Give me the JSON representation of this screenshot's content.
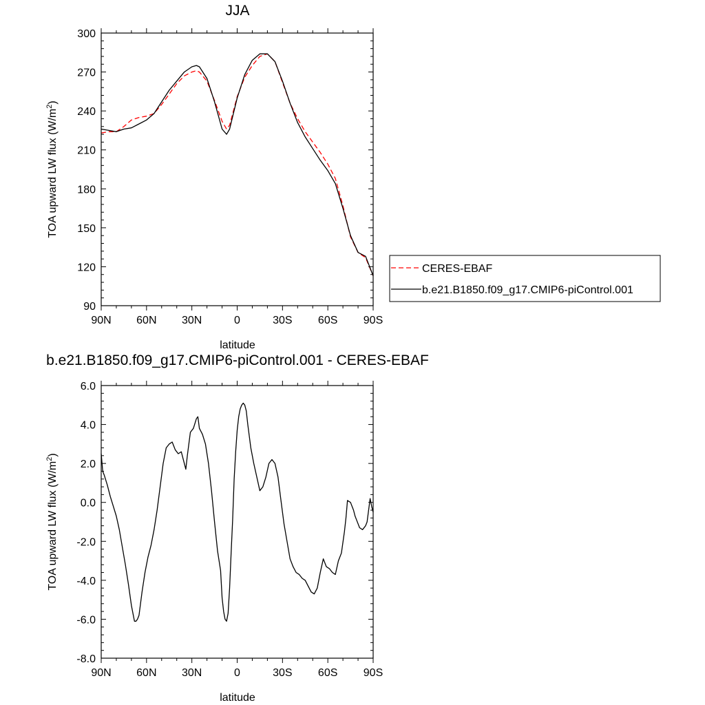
{
  "chart_data": [
    {
      "type": "line",
      "title": "JJA",
      "xlabel": "latitude",
      "ylabel": "TOA upward LW flux (W/m",
      "ylabel_sup": "2",
      "ylabel_tail": ")",
      "xlim": [
        90,
        -90
      ],
      "ylim": [
        90,
        300
      ],
      "x_ticks": [
        {
          "v": 90,
          "label": "90N"
        },
        {
          "v": 60,
          "label": "60N"
        },
        {
          "v": 30,
          "label": "30N"
        },
        {
          "v": 0,
          "label": "0"
        },
        {
          "v": -30,
          "label": "30S"
        },
        {
          "v": -60,
          "label": "60S"
        },
        {
          "v": -90,
          "label": "90S"
        }
      ],
      "y_ticks": [
        {
          "v": 90,
          "label": "90"
        },
        {
          "v": 120,
          "label": "120"
        },
        {
          "v": 150,
          "label": "150"
        },
        {
          "v": 180,
          "label": "180"
        },
        {
          "v": 210,
          "label": "210"
        },
        {
          "v": 240,
          "label": "240"
        },
        {
          "v": 270,
          "label": "270"
        },
        {
          "v": 300,
          "label": "300"
        }
      ],
      "legend": "right",
      "series": [
        {
          "name": "CERES-EBAF",
          "color": "#ff0000",
          "dash": "dashed",
          "x": [
            90,
            85,
            80,
            75,
            70,
            65,
            60,
            55,
            50,
            45,
            40,
            35,
            30,
            27,
            25,
            20,
            15,
            10,
            7,
            5,
            0,
            -5,
            -10,
            -15,
            -20,
            -25,
            -30,
            -35,
            -40,
            -45,
            -50,
            -55,
            -60,
            -65,
            -70,
            -75,
            -80,
            -85,
            -90
          ],
          "y": [
            223,
            224,
            224,
            228,
            233,
            235,
            236,
            238,
            245,
            253,
            261,
            267,
            270,
            271,
            270,
            263,
            248,
            232,
            226,
            229,
            251,
            266,
            275,
            282,
            284,
            278,
            262,
            246,
            234,
            224,
            216,
            208,
            199,
            188,
            167,
            143,
            131,
            127,
            113
          ]
        },
        {
          "name": "b.e21.B1850.f09_g17.CMIP6-piControl.001",
          "color": "#000000",
          "dash": "solid",
          "x": [
            90,
            85,
            80,
            75,
            70,
            65,
            60,
            55,
            50,
            45,
            40,
            35,
            30,
            27,
            25,
            20,
            15,
            10,
            7,
            5,
            0,
            -5,
            -10,
            -15,
            -20,
            -25,
            -30,
            -35,
            -40,
            -45,
            -50,
            -55,
            -60,
            -65,
            -70,
            -75,
            -80,
            -85,
            -90
          ],
          "y": [
            226,
            225,
            224,
            226,
            227,
            230,
            233,
            238,
            247,
            256,
            263,
            270,
            274,
            275,
            274,
            265,
            247,
            226,
            222,
            226,
            250,
            268,
            279,
            284,
            284,
            278,
            263,
            246,
            231,
            220,
            211,
            202,
            194,
            184,
            165,
            144,
            131,
            128,
            113
          ]
        }
      ]
    },
    {
      "type": "line",
      "title": "b.e21.B1850.f09_g17.CMIP6-piControl.001 - CERES-EBAF",
      "xlabel": "latitude",
      "ylabel": "TOA upward LW flux (W/m",
      "ylabel_sup": "2",
      "ylabel_tail": ")",
      "xlim": [
        90,
        -90
      ],
      "ylim": [
        -8,
        6
      ],
      "x_ticks": [
        {
          "v": 90,
          "label": "90N"
        },
        {
          "v": 60,
          "label": "60N"
        },
        {
          "v": 30,
          "label": "30N"
        },
        {
          "v": 0,
          "label": "0"
        },
        {
          "v": -30,
          "label": "30S"
        },
        {
          "v": -60,
          "label": "60S"
        },
        {
          "v": -90,
          "label": "90S"
        }
      ],
      "y_ticks": [
        {
          "v": -8,
          "label": "-8.0"
        },
        {
          "v": -6,
          "label": "-6.0"
        },
        {
          "v": -4,
          "label": "-4.0"
        },
        {
          "v": -2,
          "label": "-2.0"
        },
        {
          "v": 0,
          "label": "0.0"
        },
        {
          "v": 2,
          "label": "2.0"
        },
        {
          "v": 4,
          "label": "4.0"
        },
        {
          "v": 6,
          "label": "6.0"
        }
      ],
      "series": [
        {
          "color": "#000000",
          "dash": "solid",
          "x": [
            90,
            89,
            88,
            86,
            84,
            82,
            80,
            78,
            76,
            74,
            72,
            70,
            68,
            67,
            66,
            65,
            63,
            61,
            59,
            57,
            55,
            53,
            51,
            49,
            47,
            45,
            43,
            41,
            39,
            37,
            35,
            34,
            33,
            31,
            29,
            27,
            26,
            25,
            23,
            21,
            19,
            17,
            15,
            13,
            11,
            10,
            9,
            8,
            7,
            6,
            5,
            4,
            3,
            2,
            1,
            0,
            -1,
            -2,
            -3,
            -4,
            -5,
            -6,
            -7,
            -9,
            -11,
            -13,
            -15,
            -17,
            -19,
            -21,
            -23,
            -25,
            -27,
            -29,
            -31,
            -33,
            -35,
            -37,
            -39,
            -41,
            -43,
            -45,
            -47,
            -49,
            -51,
            -53,
            -55,
            -57,
            -59,
            -61,
            -63,
            -65,
            -67,
            -69,
            -71,
            -72,
            -73,
            -75,
            -77,
            -78,
            -79,
            -81,
            -83,
            -85,
            -86,
            -88,
            -89,
            -90
          ],
          "y": [
            2.5,
            1.6,
            1.4,
            0.9,
            0.3,
            -0.2,
            -0.7,
            -1.4,
            -2.3,
            -3.2,
            -4.2,
            -5.3,
            -6.1,
            -6.1,
            -6.0,
            -5.8,
            -4.6,
            -3.6,
            -2.8,
            -2.2,
            -1.4,
            -0.4,
            0.8,
            2.0,
            2.8,
            3.0,
            3.1,
            2.7,
            2.5,
            2.6,
            2.0,
            1.7,
            2.4,
            3.6,
            3.8,
            4.3,
            4.4,
            3.8,
            3.5,
            3.0,
            2.0,
            0.6,
            -1.0,
            -2.5,
            -3.5,
            -4.9,
            -5.6,
            -6.0,
            -6.1,
            -5.7,
            -4.4,
            -2.6,
            -0.9,
            1.2,
            2.6,
            3.7,
            4.4,
            4.8,
            5.0,
            5.1,
            5.0,
            4.7,
            4.0,
            2.8,
            2.0,
            1.3,
            0.6,
            0.8,
            1.3,
            2.0,
            2.2,
            2.0,
            1.3,
            0.1,
            -1.1,
            -2.0,
            -2.9,
            -3.3,
            -3.6,
            -3.7,
            -3.9,
            -4.0,
            -4.3,
            -4.6,
            -4.7,
            -4.4,
            -3.6,
            -2.9,
            -3.3,
            -3.4,
            -3.6,
            -3.7,
            -3.0,
            -2.6,
            -1.5,
            -0.8,
            0.1,
            0.0,
            -0.4,
            -0.7,
            -0.9,
            -1.3,
            -1.4,
            -1.2,
            -1.0,
            0.2,
            -0.2,
            -0.5
          ]
        }
      ]
    }
  ]
}
